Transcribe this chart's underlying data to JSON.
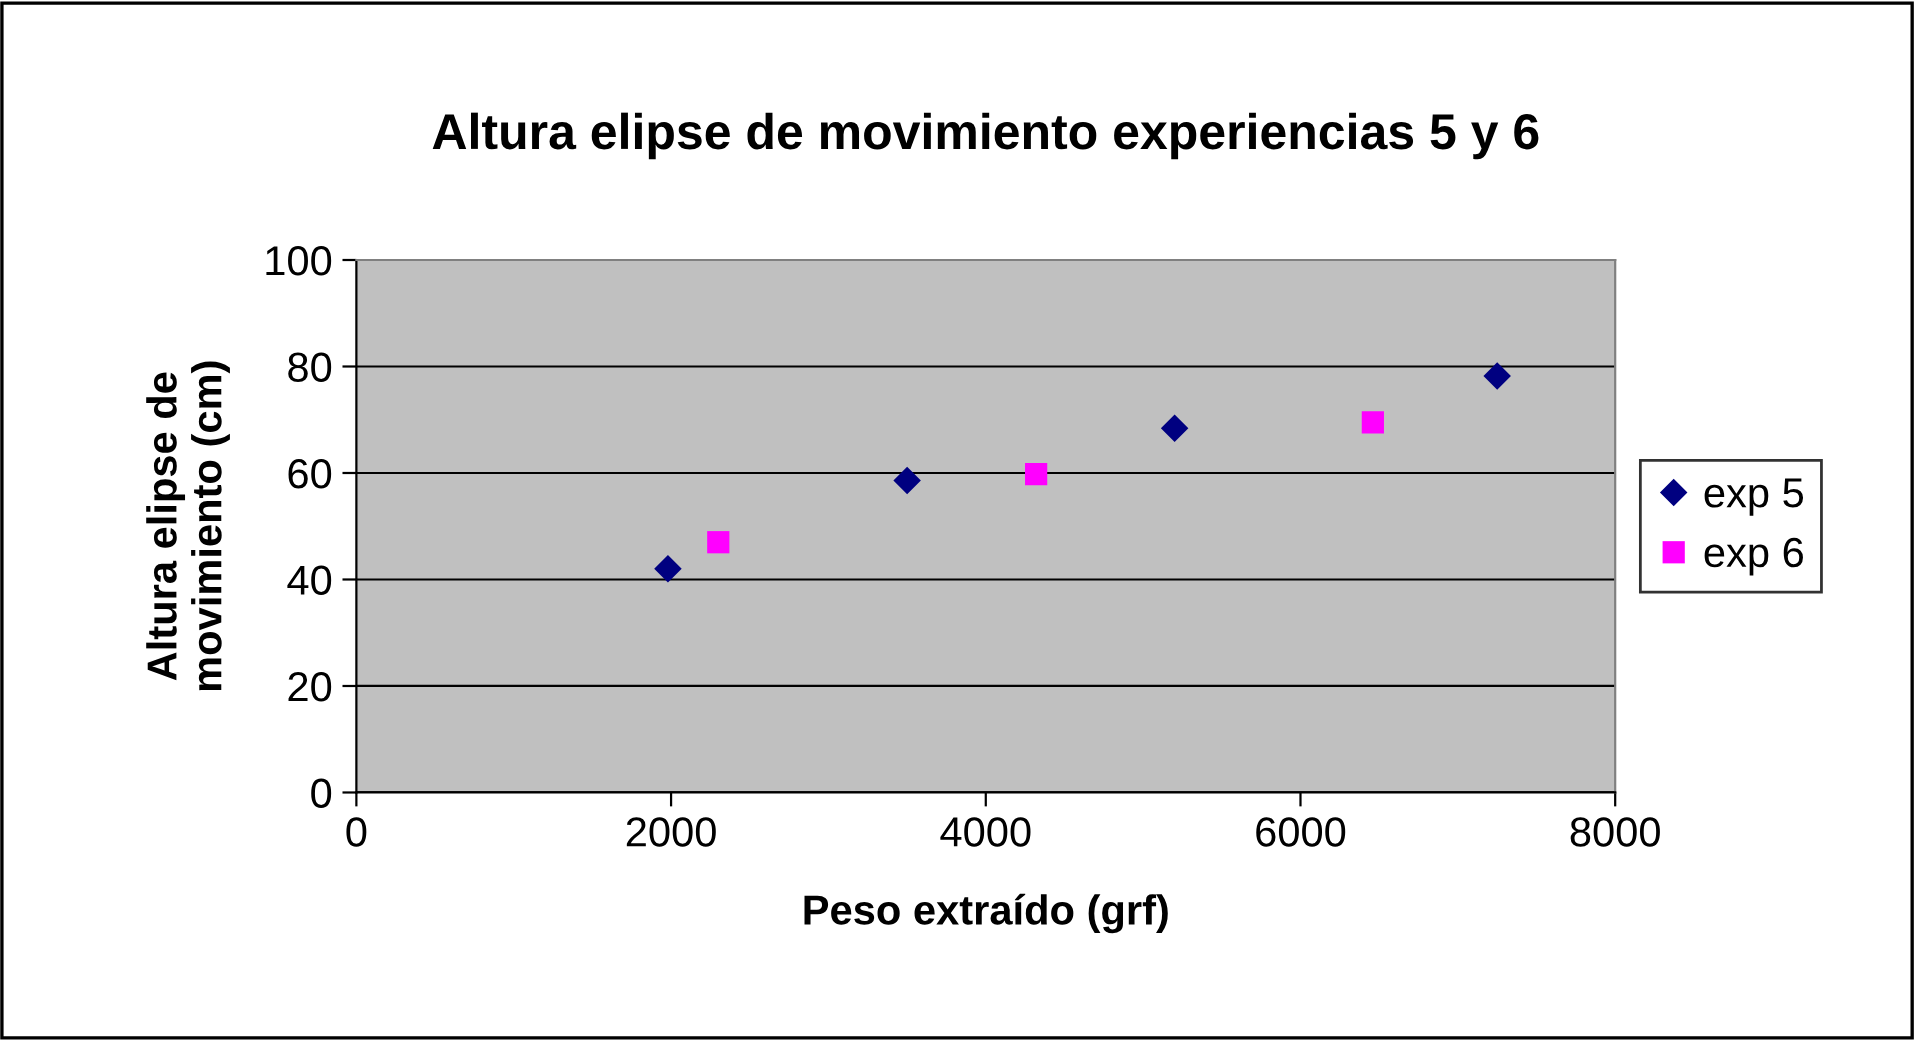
{
  "chart_data": {
    "type": "scatter",
    "title": "Altura elipse de movimiento experiencias 5 y 6",
    "xlabel": "Peso extraído (grf)",
    "ylabel": "Altura elipse de\nmovimiento (cm)",
    "series": [
      {
        "name": "exp 5",
        "color": "#000080",
        "marker": "diamond",
        "x": [
          1980,
          3500,
          5200,
          7250
        ],
        "values": [
          42,
          58.6,
          68.4,
          78.2
        ]
      },
      {
        "name": "exp 6",
        "color": "#ff00ff",
        "marker": "square",
        "x": [
          2300,
          4320,
          6460
        ],
        "values": [
          47,
          59.8,
          69.5
        ]
      }
    ],
    "xlim": [
      0,
      8000
    ],
    "xticks": [
      0,
      2000,
      4000,
      6000,
      8000
    ],
    "ylim": [
      0,
      100
    ],
    "yticks": [
      0,
      20,
      40,
      60,
      80,
      100
    ],
    "grid": "y",
    "legend": "right"
  }
}
